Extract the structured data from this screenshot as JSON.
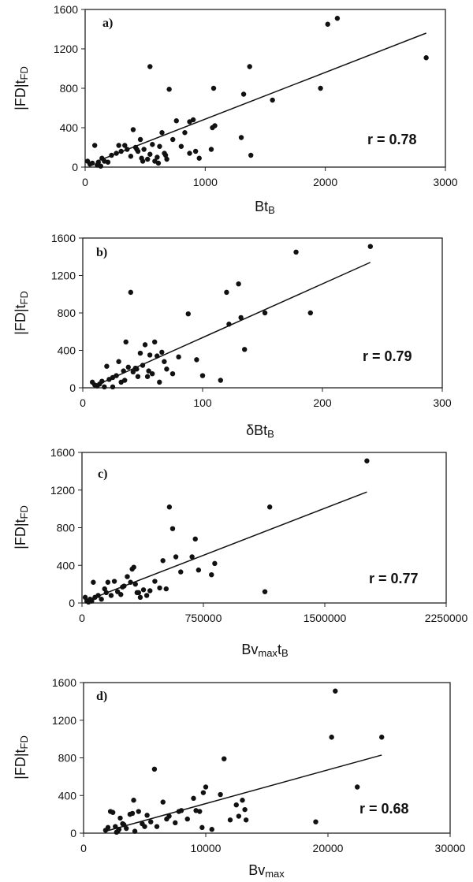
{
  "chart_data": [
    {
      "type": "scatter",
      "panel_label": "a)",
      "xlabel_main": "Bt",
      "xlabel_sub": "B",
      "ylabel_main": "|FD|t",
      "ylabel_sub": "FD",
      "xlim": [
        0,
        3000
      ],
      "ylim": [
        0,
        1600
      ],
      "xticks": [
        0,
        1000,
        2000,
        3000
      ],
      "xtick_labels": [
        "0",
        "1000",
        "2000",
        "3000"
      ],
      "yticks": [
        0,
        400,
        800,
        1200,
        1600
      ],
      "ytick_labels": [
        "0",
        "400",
        "800",
        "1200",
        "1600"
      ],
      "annotation": "r = 0.78",
      "trendline": {
        "x": [
          100,
          2840
        ],
        "y": [
          60,
          1360
        ]
      },
      "points": {
        "x": [
          20,
          40,
          60,
          80,
          100,
          110,
          130,
          140,
          160,
          190,
          220,
          260,
          280,
          300,
          330,
          350,
          380,
          400,
          420,
          440,
          460,
          470,
          490,
          520,
          540,
          560,
          580,
          600,
          620,
          640,
          660,
          680,
          700,
          730,
          760,
          800,
          830,
          870,
          900,
          920,
          950,
          1050,
          1060,
          1070,
          1080,
          1300,
          1320,
          1370,
          1380,
          1560,
          1960,
          2020,
          2100,
          2840,
          540,
          670,
          430,
          610,
          480,
          870
        ],
        "y": [
          60,
          30,
          40,
          220,
          20,
          50,
          10,
          90,
          60,
          50,
          120,
          140,
          220,
          160,
          220,
          180,
          110,
          380,
          200,
          160,
          280,
          90,
          180,
          80,
          1020,
          230,
          60,
          100,
          210,
          350,
          140,
          80,
          790,
          280,
          470,
          210,
          350,
          460,
          480,
          160,
          90,
          180,
          400,
          800,
          420,
          300,
          740,
          1020,
          120,
          680,
          800,
          1450,
          1510,
          1110,
          130,
          120,
          180,
          40,
          60,
          140
        ]
      }
    },
    {
      "type": "scatter",
      "panel_label": "b)",
      "xlabel_main": "δBt",
      "xlabel_sub": "B",
      "ylabel_main": "|FD|t",
      "ylabel_sub": "FD",
      "xlim": [
        0,
        300
      ],
      "ylim": [
        0,
        1600
      ],
      "xticks": [
        0,
        100,
        200,
        300
      ],
      "xtick_labels": [
        "0",
        "100",
        "200",
        "300"
      ],
      "yticks": [
        0,
        400,
        800,
        1200,
        1600
      ],
      "ytick_labels": [
        "0",
        "400",
        "800",
        "1200",
        "1600"
      ],
      "annotation": "r = 0.79",
      "trendline": {
        "x": [
          10,
          240
        ],
        "y": [
          20,
          1340
        ]
      },
      "points": {
        "x": [
          8,
          10,
          12,
          14,
          16,
          18,
          20,
          22,
          25,
          28,
          30,
          32,
          34,
          36,
          38,
          40,
          42,
          44,
          46,
          48,
          50,
          52,
          54,
          56,
          58,
          60,
          62,
          64,
          66,
          68,
          70,
          80,
          88,
          95,
          100,
          115,
          120,
          122,
          130,
          132,
          135,
          152,
          178,
          190,
          240,
          35,
          45,
          55,
          75,
          25
        ],
        "y": [
          60,
          30,
          20,
          40,
          70,
          10,
          230,
          90,
          110,
          130,
          280,
          60,
          180,
          490,
          220,
          1020,
          170,
          210,
          120,
          370,
          240,
          460,
          120,
          350,
          150,
          490,
          340,
          60,
          380,
          280,
          200,
          330,
          790,
          300,
          130,
          80,
          1020,
          680,
          1110,
          750,
          410,
          800,
          1450,
          800,
          1510,
          80,
          200,
          180,
          150,
          10
        ]
      }
    },
    {
      "type": "scatter",
      "panel_label": "c)",
      "xlabel_main": "Bv",
      "xlabel_sub": "max",
      "xlabel_tail_main": "t",
      "xlabel_tail_sub": "B",
      "ylabel_main": "|FD|t",
      "ylabel_sub": "FD",
      "xlim": [
        0,
        2250000
      ],
      "ylim": [
        0,
        1600
      ],
      "xticks": [
        0,
        750000,
        1500000,
        2250000
      ],
      "xtick_labels": [
        "0",
        "750000",
        "1500000",
        "2250000"
      ],
      "yticks": [
        0,
        400,
        800,
        1200,
        1600
      ],
      "ytick_labels": [
        "0",
        "400",
        "800",
        "1200",
        "1600"
      ],
      "annotation": "r = 0.77",
      "trendline": {
        "x": [
          20000,
          1760000
        ],
        "y": [
          20,
          1180
        ]
      },
      "points": {
        "x": [
          20000,
          30000,
          40000,
          50000,
          60000,
          70000,
          80000,
          100000,
          120000,
          140000,
          150000,
          160000,
          180000,
          200000,
          220000,
          240000,
          260000,
          280000,
          300000,
          310000,
          320000,
          330000,
          340000,
          360000,
          380000,
          400000,
          420000,
          450000,
          480000,
          500000,
          520000,
          540000,
          560000,
          580000,
          610000,
          680000,
          700000,
          720000,
          800000,
          820000,
          1130000,
          1160000,
          1760000,
          60000,
          250000,
          350000
        ],
        "y": [
          60,
          20,
          10,
          40,
          30,
          220,
          60,
          80,
          40,
          150,
          110,
          220,
          80,
          230,
          120,
          90,
          180,
          280,
          220,
          360,
          380,
          200,
          110,
          60,
          140,
          80,
          130,
          230,
          160,
          450,
          150,
          1020,
          790,
          490,
          330,
          490,
          680,
          350,
          300,
          420,
          120,
          1020,
          1510,
          20,
          170,
          110
        ]
      }
    },
    {
      "type": "scatter",
      "panel_label": "d)",
      "xlabel_main": "Bv",
      "xlabel_sub": "max",
      "ylabel_main": "|FD|t",
      "ylabel_sub": "FD",
      "xlim": [
        0,
        30000
      ],
      "ylim": [
        0,
        1600
      ],
      "xticks": [
        0,
        10000,
        20000,
        30000
      ],
      "xtick_labels": [
        "0",
        "10000",
        "20000",
        "30000"
      ],
      "yticks": [
        0,
        400,
        800,
        1200,
        1600
      ],
      "ytick_labels": [
        "0",
        "400",
        "800",
        "1200",
        "1600"
      ],
      "annotation": "r = 0.68",
      "trendline": {
        "x": [
          1800,
          24400
        ],
        "y": [
          20,
          830
        ]
      },
      "points": {
        "x": [
          1800,
          2000,
          2200,
          2400,
          2600,
          2700,
          2800,
          2900,
          3000,
          3200,
          3500,
          3800,
          4000,
          4100,
          4200,
          4500,
          4800,
          5000,
          5200,
          5500,
          5800,
          6000,
          6500,
          7000,
          7500,
          7800,
          8000,
          8500,
          9000,
          9200,
          9500,
          9700,
          9800,
          10000,
          10500,
          11200,
          11500,
          12000,
          12500,
          12700,
          13000,
          13200,
          13300,
          19000,
          20300,
          20600,
          22400,
          24400,
          3300,
          6800
        ],
        "y": [
          30,
          60,
          230,
          220,
          70,
          10,
          20,
          40,
          160,
          100,
          50,
          200,
          210,
          350,
          20,
          230,
          100,
          70,
          190,
          120,
          680,
          70,
          330,
          180,
          110,
          230,
          240,
          150,
          370,
          240,
          230,
          60,
          430,
          490,
          40,
          410,
          790,
          140,
          300,
          180,
          350,
          250,
          140,
          120,
          1020,
          1510,
          490,
          1020,
          90,
          150
        ]
      }
    }
  ]
}
